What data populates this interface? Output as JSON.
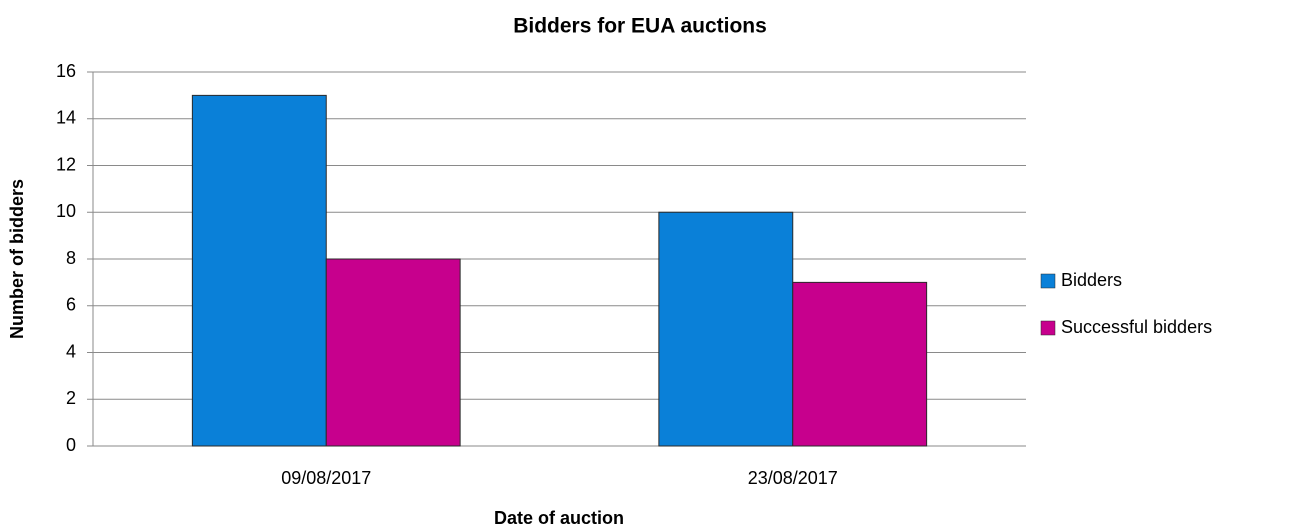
{
  "chart_data": {
    "type": "bar",
    "title": "Bidders for EUA auctions",
    "x_label": "Date of auction",
    "y_label": "Number of bidders",
    "categories": [
      "09/08/2017",
      "23/08/2017"
    ],
    "series": [
      {
        "name": "Bidders",
        "color": "#0a80d8",
        "values": [
          15,
          10
        ]
      },
      {
        "name": "Successful bidders",
        "color": "#c7008d",
        "values": [
          8,
          7
        ]
      }
    ],
    "ylim": [
      0,
      16
    ],
    "yticks": [
      0,
      2,
      4,
      6,
      8,
      10,
      12,
      14,
      16
    ],
    "grid": true,
    "legend": "right"
  }
}
